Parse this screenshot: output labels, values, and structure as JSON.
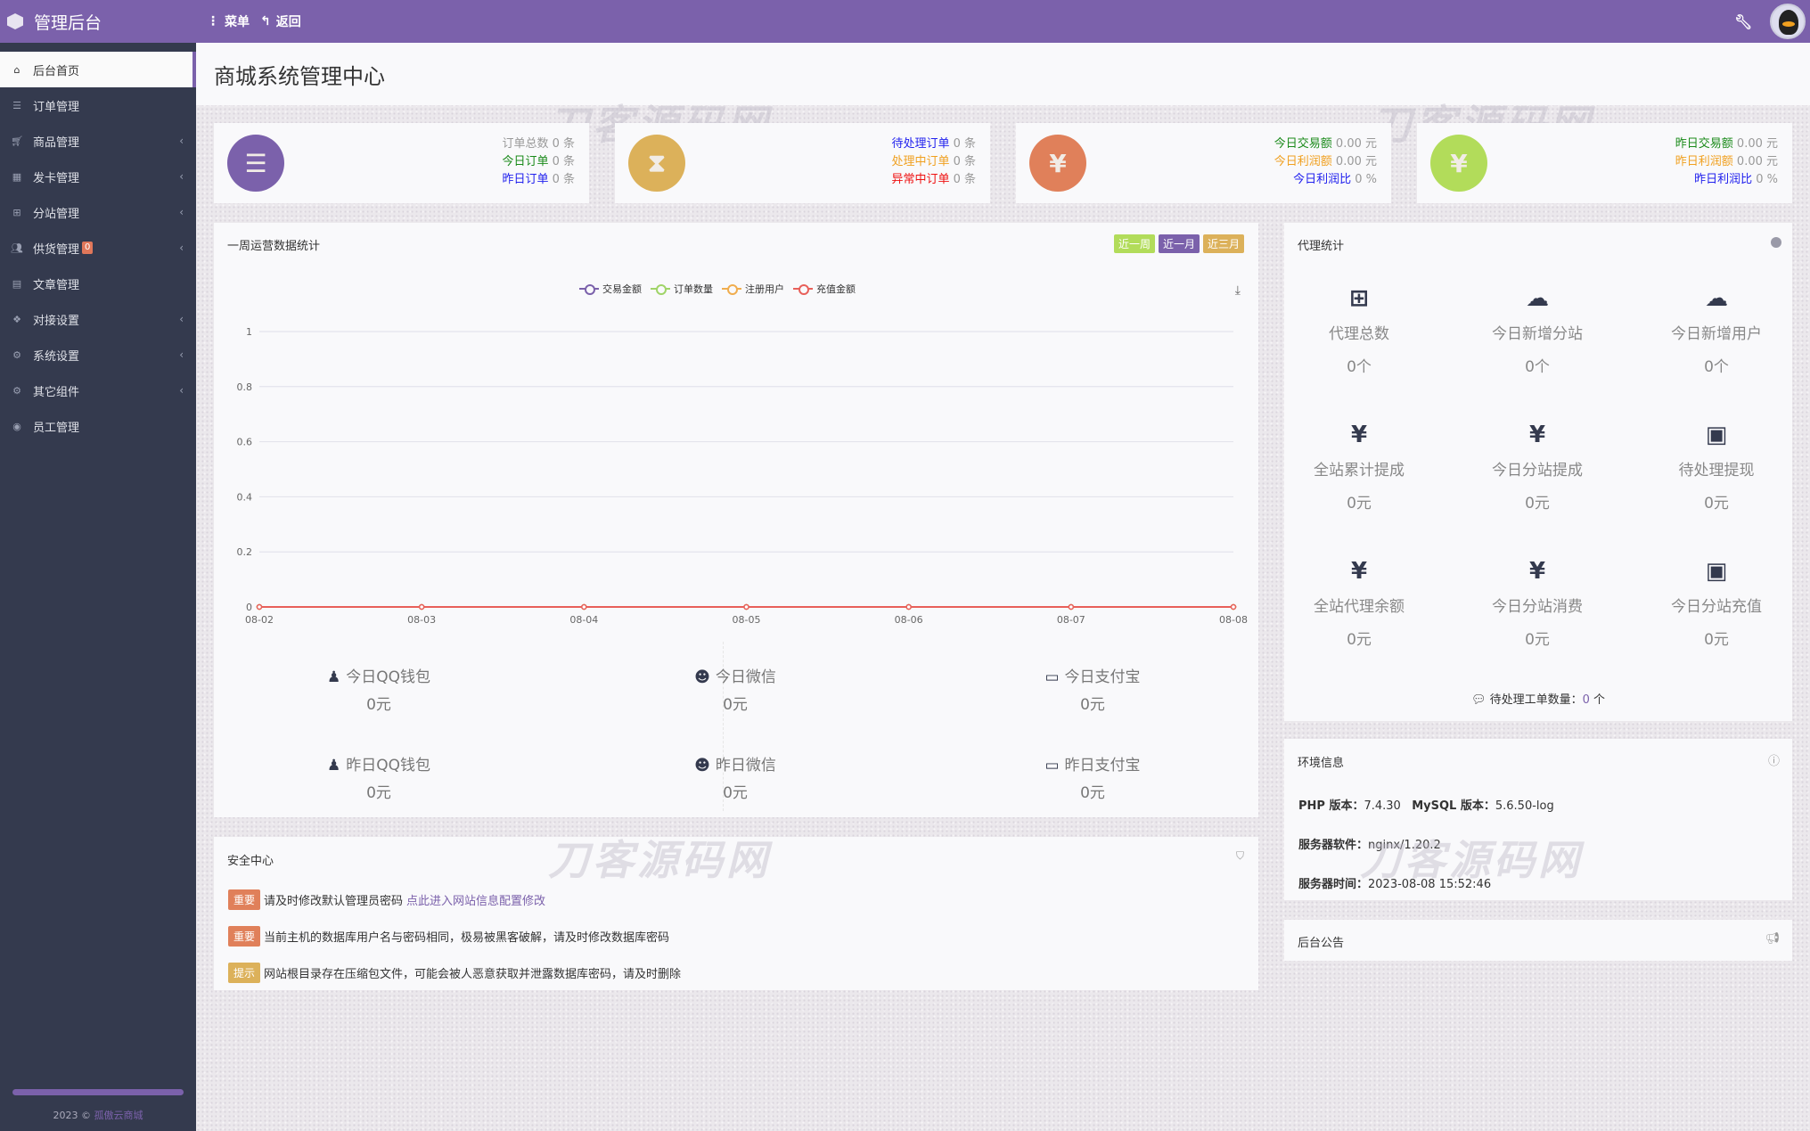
{
  "header": {
    "brand": "管理后台",
    "menu": "菜单",
    "back": "返回",
    "icons": [
      "cube-icon",
      "ellipsis-vertical-icon",
      "reply-icon",
      "wrench-icon",
      "avatar"
    ]
  },
  "sidebar": {
    "items": [
      {
        "label": "后台首页",
        "icon": "home-icon",
        "active": true
      },
      {
        "label": "订单管理",
        "icon": "list-icon"
      },
      {
        "label": "商品管理",
        "icon": "cart-icon",
        "chevron": true
      },
      {
        "label": "发卡管理",
        "icon": "grid-icon",
        "chevron": true
      },
      {
        "label": "分站管理",
        "icon": "sitemap-icon",
        "chevron": true
      },
      {
        "label": "供货管理",
        "icon": "users-icon",
        "chevron": true,
        "badge": "0"
      },
      {
        "label": "文章管理",
        "icon": "book-icon"
      },
      {
        "label": "对接设置",
        "icon": "cubes-icon",
        "chevron": true
      },
      {
        "label": "系统设置",
        "icon": "gear-icon",
        "chevron": true
      },
      {
        "label": "其它组件",
        "icon": "gears-icon",
        "chevron": true
      },
      {
        "label": "员工管理",
        "icon": "user-circle-icon"
      }
    ],
    "footer_year": "2023 ©",
    "footer_link": "孤傲云商城"
  },
  "page_title": "商城系统管理中心",
  "watermark": "刀客源码网",
  "stats": [
    {
      "color": "#7b61ab",
      "icon": "ordered-list-icon",
      "glyph": "☰",
      "rows": [
        {
          "label": "订单总数",
          "value": "0 条",
          "color": "#999"
        },
        {
          "label": "今日订单",
          "value": "0 条",
          "color": "#1a8a1a"
        },
        {
          "label": "昨日订单",
          "value": "0 条",
          "color": "#2222ee"
        }
      ]
    },
    {
      "color": "#dcb15a",
      "icon": "hourglass-icon",
      "glyph": "⧗",
      "rows": [
        {
          "label": "待处理订单",
          "value": "0 条",
          "color": "#2222ee"
        },
        {
          "label": "处理中订单",
          "value": "0 条",
          "color": "#f0a020"
        },
        {
          "label": "异常中订单",
          "value": "0 条",
          "color": "#ee1111"
        }
      ]
    },
    {
      "color": "#e0805a",
      "icon": "yen-icon",
      "glyph": "¥",
      "rows": [
        {
          "label": "今日交易额",
          "value": "0.00 元",
          "color": "#1a8a1a"
        },
        {
          "label": "今日利润额",
          "value": "0.00 元",
          "color": "#f0a020"
        },
        {
          "label": "今日利润比",
          "value": "0 %",
          "color": "#2222ee"
        }
      ]
    },
    {
      "color": "#b2dc5a",
      "icon": "yen-icon",
      "glyph": "¥",
      "rows": [
        {
          "label": "昨日交易额",
          "value": "0.00 元",
          "color": "#1a8a1a"
        },
        {
          "label": "昨日利润额",
          "value": "0.00 元",
          "color": "#f0a020"
        },
        {
          "label": "昨日利润比",
          "value": "0 %",
          "color": "#2222ee"
        }
      ]
    }
  ],
  "weekly": {
    "title": "一周运营数据统计",
    "ranges": [
      {
        "label": "近一周",
        "color": "#b2dc5a"
      },
      {
        "label": "近一月",
        "color": "#7b61ab"
      },
      {
        "label": "近三月",
        "color": "#dcb15a"
      }
    ],
    "payments": [
      {
        "label": "今日QQ钱包",
        "value": "0元",
        "icon": "qq-icon"
      },
      {
        "label": "今日微信",
        "value": "0元",
        "icon": "wechat-icon"
      },
      {
        "label": "今日支付宝",
        "value": "0元",
        "icon": "credit-card-icon"
      },
      {
        "label": "昨日QQ钱包",
        "value": "0元",
        "icon": "qq-icon"
      },
      {
        "label": "昨日微信",
        "value": "0元",
        "icon": "wechat-icon"
      },
      {
        "label": "昨日支付宝",
        "value": "0元",
        "icon": "credit-card-icon"
      }
    ]
  },
  "chart_data": {
    "type": "line",
    "categories": [
      "08-02",
      "08-03",
      "08-04",
      "08-05",
      "08-06",
      "08-07",
      "08-08"
    ],
    "series": [
      {
        "name": "交易金额",
        "color": "#7b61ab",
        "values": [
          0,
          0,
          0,
          0,
          0,
          0,
          0
        ]
      },
      {
        "name": "订单数量",
        "color": "#a0d468",
        "values": [
          0,
          0,
          0,
          0,
          0,
          0,
          0
        ]
      },
      {
        "name": "注册用户",
        "color": "#f0ad4e",
        "values": [
          0,
          0,
          0,
          0,
          0,
          0,
          0
        ]
      },
      {
        "name": "充值金额",
        "color": "#e8605a",
        "values": [
          0,
          0,
          0,
          0,
          0,
          0,
          0
        ]
      }
    ],
    "ylim": [
      0,
      1
    ],
    "yticks": [
      "0",
      "0.2",
      "0.4",
      "0.6",
      "0.8",
      "1"
    ],
    "grid": true,
    "legend": "top"
  },
  "agent": {
    "title": "代理统计",
    "items": [
      {
        "label": "代理总数",
        "value": "0个",
        "icon": "sitemap-icon",
        "glyph": "⊞"
      },
      {
        "label": "今日新增分站",
        "value": "0个",
        "icon": "cloud-icon",
        "glyph": "☁"
      },
      {
        "label": "今日新增用户",
        "value": "0个",
        "icon": "cloud-icon",
        "glyph": "☁"
      },
      {
        "label": "全站累计提成",
        "value": "0元",
        "icon": "yen-icon",
        "glyph": "¥"
      },
      {
        "label": "今日分站提成",
        "value": "0元",
        "icon": "yen-icon",
        "glyph": "¥"
      },
      {
        "label": "待处理提现",
        "value": "0元",
        "icon": "money-bill-icon",
        "glyph": "▣"
      },
      {
        "label": "全站代理余额",
        "value": "0元",
        "icon": "yen-icon",
        "glyph": "¥"
      },
      {
        "label": "今日分站消费",
        "value": "0元",
        "icon": "yen-icon",
        "glyph": "¥"
      },
      {
        "label": "今日分站充值",
        "value": "0元",
        "icon": "money-bill-icon",
        "glyph": "▣"
      }
    ],
    "tickets_label": "待处理工单数量：",
    "tickets_value": "0",
    "tickets_unit": "个"
  },
  "env": {
    "title": "环境信息",
    "php_label": "PHP 版本：",
    "php": "7.4.30",
    "mysql_label": "MySQL 版本：",
    "mysql": "5.6.50-log",
    "server_label": "服务器软件：",
    "server": "nginx/1.20.2",
    "time_label": "服务器时间：",
    "time": "2023-08-08 15:52:46"
  },
  "notice": {
    "title": "后台公告"
  },
  "security": {
    "title": "安全中心",
    "items": [
      {
        "tag": "重要",
        "color": "#e0805a",
        "text": "请及时修改默认管理员密码",
        "link": "点此进入网站信息配置修改"
      },
      {
        "tag": "重要",
        "color": "#e0805a",
        "text": "当前主机的数据库用户名与密码相同，极易被黑客破解，请及时修改数据库密码"
      },
      {
        "tag": "提示",
        "color": "#dcb15a",
        "text": "网站根目录存在压缩包文件，可能会被人恶意获取并泄露数据库密码，请及时删除"
      }
    ]
  }
}
